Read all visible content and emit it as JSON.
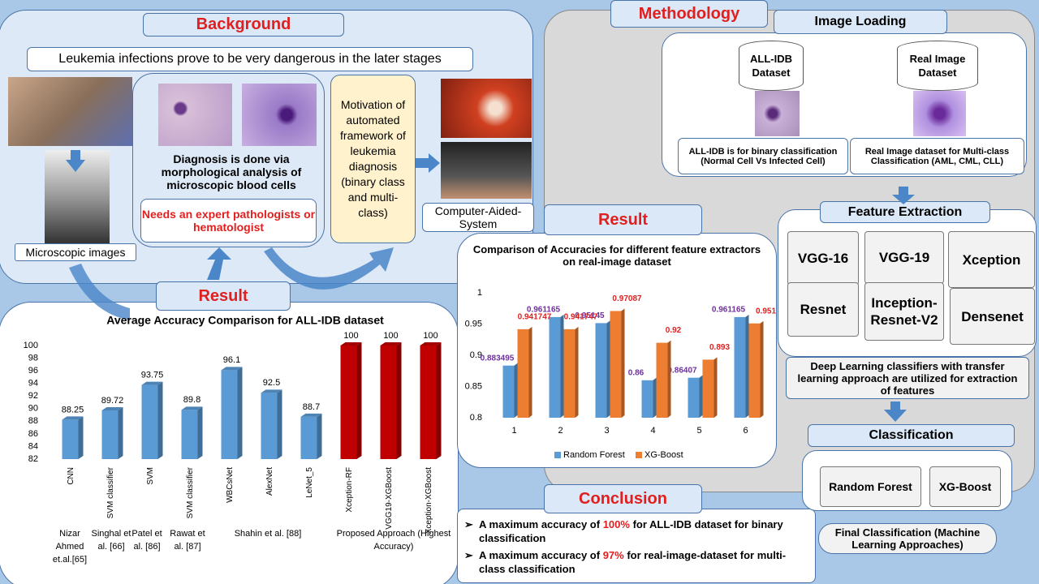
{
  "background": {
    "title": "Background",
    "banner": "Leukemia infections prove to be very dangerous in the later stages",
    "microscopic_images": "Microscopic images",
    "diagnosis": "Diagnosis is done via morphological analysis of microscopic blood cells",
    "expert": "Needs an expert pathologists or hematologist",
    "motivation": "Motivation of automated framework of leukemia diagnosis (binary class and multi-class)",
    "cad": "Computer-Aided-System"
  },
  "result_labels": [
    "Result",
    "Result"
  ],
  "methodology": {
    "title": "Methodology",
    "image_loading": "Image Loading",
    "datasets": [
      {
        "name": "ALL-IDB Dataset",
        "caption": "ALL-IDB is for binary classification (Normal Cell Vs Infected Cell)"
      },
      {
        "name": "Real Image Dataset",
        "caption": "Real Image dataset for Multi-class Classification (AML, CML, CLL)"
      }
    ],
    "feature_extraction": "Feature Extraction",
    "extractors": [
      "VGG-16",
      "VGG-19",
      "Xception",
      "Resnet",
      "Inception-Resnet-V2",
      "Densenet"
    ],
    "feature_note": "Deep Learning classifiers with transfer learning approach are utilized for extraction of features",
    "classification": "Classification",
    "classifiers": [
      "Random Forest",
      "XG-Boost"
    ],
    "final": "Final Classification (Machine Learning Approaches)"
  },
  "conclusion": {
    "title": "Conclusion",
    "points": [
      [
        "A maximum accuracy of ",
        "100%",
        " for ALL-IDB dataset for binary classification"
      ],
      [
        "A maximum accuracy of ",
        "97%",
        " for real-image-dataset for multi-class classification"
      ]
    ]
  },
  "chart_data": [
    {
      "type": "bar",
      "title": "Average Accuracy Comparison for ALL-IDB dataset",
      "categories": [
        "CNN",
        "SVM classifier",
        "SVM",
        "SVM classifier",
        "WBCsNet",
        "AlexNet",
        "LeNet_5",
        "Xception-RF",
        "VGG19-XGBoost",
        "Xception-XGBoost"
      ],
      "values": [
        88.25,
        89.72,
        93.75,
        89.8,
        96.1,
        92.5,
        88.7,
        100,
        100,
        100
      ],
      "colors": [
        "#5b9bd5",
        "#5b9bd5",
        "#5b9bd5",
        "#5b9bd5",
        "#5b9bd5",
        "#5b9bd5",
        "#5b9bd5",
        "#c00000",
        "#c00000",
        "#c00000"
      ],
      "ylim": [
        82,
        100
      ],
      "yticks": [
        82,
        84,
        86,
        88,
        90,
        92,
        94,
        96,
        98,
        100
      ],
      "groups": [
        "Nizar Ahmed et.al.[65]",
        "Singhal et al. [66]",
        "Patel et al. [86]",
        "Rawat et al. [87]",
        "Shahin et al. [88]",
        "Proposed Approach (Highest Accuracy)"
      ]
    },
    {
      "type": "grouped-bar",
      "title": "Comparison of Accuracies for different feature extractors on real-image dataset",
      "categories": [
        "1",
        "2",
        "3",
        "4",
        "5",
        "6"
      ],
      "series": [
        {
          "name": "Random Forest",
          "color": "#5b9bd5",
          "label_color": "#7030a0",
          "values": [
            0.883495,
            0.961165,
            0.95145,
            0.86,
            0.86407,
            0.961165
          ]
        },
        {
          "name": "XG-Boost",
          "color": "#ed7d31",
          "label_color": "#e02020",
          "values": [
            0.941747,
            0.941747,
            0.97087,
            0.92,
            0.893,
            0.951
          ]
        }
      ],
      "ylim": [
        0.8,
        1
      ],
      "yticks": [
        0.8,
        0.85,
        0.9,
        0.95,
        1
      ],
      "legend": "bottom"
    }
  ]
}
